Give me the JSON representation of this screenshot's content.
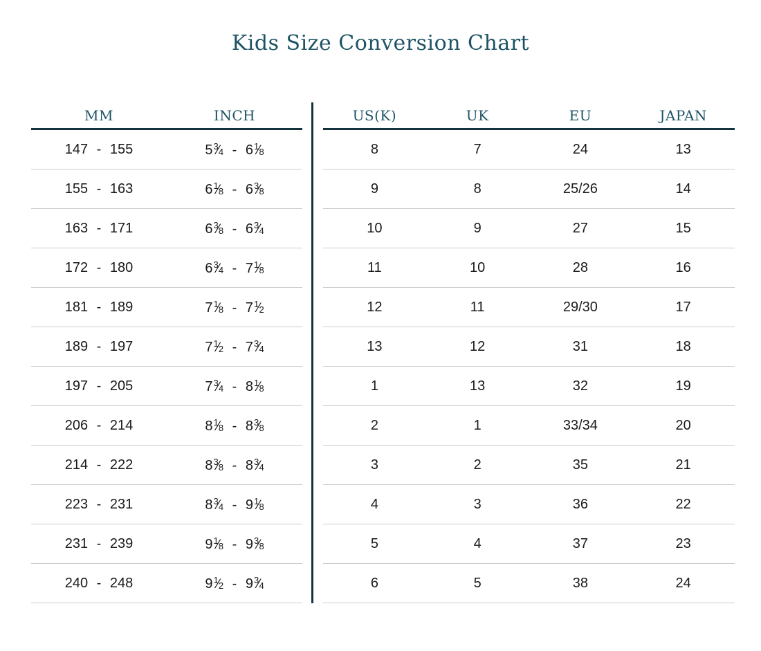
{
  "page": {
    "title": "Kids Size Conversion Chart"
  },
  "colors": {
    "heading_text": "#1d5365",
    "dark_rule": "#14333e",
    "row_divider": "#cccccc",
    "body_text": "#1a1a1a",
    "background": "#ffffff"
  },
  "chart_data": {
    "type": "table",
    "title": "Kids Size Conversion Chart",
    "left_columns": [
      "MM",
      "INCH"
    ],
    "right_columns": [
      "US(K)",
      "UK",
      "EU",
      "JAPAN"
    ],
    "rows": [
      {
        "mm": "147 - 155",
        "inch": "5 3/4 - 6 1/8",
        "usk": "8",
        "uk": "7",
        "eu": "24",
        "japan": "13"
      },
      {
        "mm": "155 - 163",
        "inch": "6 1/8 - 6 3/8",
        "usk": "9",
        "uk": "8",
        "eu": "25/26",
        "japan": "14"
      },
      {
        "mm": "163 - 171",
        "inch": "6 3/8 - 6 3/4",
        "usk": "10",
        "uk": "9",
        "eu": "27",
        "japan": "15"
      },
      {
        "mm": "172 - 180",
        "inch": "6 3/4 - 7 1/8",
        "usk": "11",
        "uk": "10",
        "eu": "28",
        "japan": "16"
      },
      {
        "mm": "181 - 189",
        "inch": "7 1/8 - 7 1/2",
        "usk": "12",
        "uk": "11",
        "eu": "29/30",
        "japan": "17"
      },
      {
        "mm": "189 - 197",
        "inch": "7 1/2 - 7 3/4",
        "usk": "13",
        "uk": "12",
        "eu": "31",
        "japan": "18"
      },
      {
        "mm": "197 - 205",
        "inch": "7 3/4 - 8 1/8",
        "usk": "1",
        "uk": "13",
        "eu": "32",
        "japan": "19"
      },
      {
        "mm": "206 - 214",
        "inch": "8 1/8 - 8 3/8",
        "usk": "2",
        "uk": "1",
        "eu": "33/34",
        "japan": "20"
      },
      {
        "mm": "214 - 222",
        "inch": "8 3/8 - 8 3/4",
        "usk": "3",
        "uk": "2",
        "eu": "35",
        "japan": "21"
      },
      {
        "mm": "223 - 231",
        "inch": "8 3/4 - 9 1/8",
        "usk": "4",
        "uk": "3",
        "eu": "36",
        "japan": "22"
      },
      {
        "mm": "231 - 239",
        "inch": "9 1/8 - 9 3/8",
        "usk": "5",
        "uk": "4",
        "eu": "37",
        "japan": "23"
      },
      {
        "mm": "240 - 248",
        "inch": "9 1/2 - 9 3/4",
        "usk": "6",
        "uk": "5",
        "eu": "38",
        "japan": "24"
      }
    ]
  }
}
